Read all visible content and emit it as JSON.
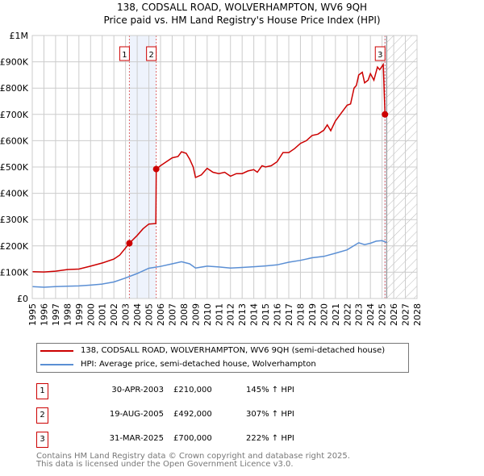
{
  "chart_data": {
    "type": "line",
    "title": "138, CODSALL ROAD, WOLVERHAMPTON, WV6 9QH",
    "subtitle": "Price paid vs. HM Land Registry's House Price Index (HPI)",
    "xlim": [
      1995,
      2028
    ],
    "ylim": [
      0,
      1000000
    ],
    "grid": true,
    "x_ticks": [
      "1995",
      "1996",
      "1997",
      "1998",
      "1999",
      "2000",
      "2001",
      "2002",
      "2003",
      "2004",
      "2005",
      "2006",
      "2007",
      "2008",
      "2009",
      "2010",
      "2011",
      "2012",
      "2013",
      "2014",
      "2015",
      "2016",
      "2017",
      "2018",
      "2019",
      "2020",
      "2021",
      "2022",
      "2023",
      "2024",
      "2025",
      "2026",
      "2027",
      "2028"
    ],
    "y_ticks": [
      {
        "v": 0,
        "label": "£0"
      },
      {
        "v": 100000,
        "label": "£100K"
      },
      {
        "v": 200000,
        "label": "£200K"
      },
      {
        "v": 300000,
        "label": "£300K"
      },
      {
        "v": 400000,
        "label": "£400K"
      },
      {
        "v": 500000,
        "label": "£500K"
      },
      {
        "v": 600000,
        "label": "£600K"
      },
      {
        "v": 700000,
        "label": "£700K"
      },
      {
        "v": 800000,
        "label": "£800K"
      },
      {
        "v": 900000,
        "label": "£900K"
      },
      {
        "v": 1000000,
        "label": "£1M"
      }
    ],
    "forecast_start": 2025.4,
    "series": [
      {
        "name": "138, CODSALL ROAD, WOLVERHAMPTON, WV6 9QH (semi-detached house)",
        "color": "#cc0000",
        "x": [
          1995,
          1996,
          1997,
          1998,
          1999,
          2000,
          2001,
          2002,
          2002.5,
          2003.33,
          2004,
          2004.5,
          2005,
          2005.6,
          2005.63,
          2006,
          2006.5,
          2007,
          2007.5,
          2007.8,
          2008.2,
          2008.5,
          2008.8,
          2009,
          2009.5,
          2010,
          2010.5,
          2011,
          2011.5,
          2012,
          2012.5,
          2013,
          2013.5,
          2014,
          2014.3,
          2014.7,
          2015,
          2015.5,
          2016,
          2016.5,
          2017,
          2017.5,
          2018,
          2018.5,
          2019,
          2019.5,
          2020,
          2020.3,
          2020.6,
          2021,
          2021.5,
          2022,
          2022.3,
          2022.6,
          2022.8,
          2023,
          2023.3,
          2023.5,
          2023.8,
          2024,
          2024.3,
          2024.6,
          2024.8,
          2025.1,
          2025.25,
          2025.35
        ],
        "y": [
          102000,
          101000,
          104000,
          110000,
          112000,
          123000,
          135000,
          150000,
          165000,
          210000,
          240000,
          265000,
          283000,
          285000,
          492000,
          505000,
          520000,
          535000,
          540000,
          558000,
          552000,
          530000,
          500000,
          460000,
          470000,
          495000,
          480000,
          475000,
          480000,
          465000,
          475000,
          475000,
          485000,
          490000,
          480000,
          505000,
          500000,
          505000,
          520000,
          555000,
          555000,
          570000,
          590000,
          600000,
          620000,
          625000,
          640000,
          660000,
          638000,
          675000,
          705000,
          735000,
          740000,
          800000,
          810000,
          850000,
          860000,
          820000,
          830000,
          855000,
          830000,
          880000,
          870000,
          890000,
          700000,
          690000
        ]
      },
      {
        "name": "HPI: Average price, semi-detached house, Wolverhampton",
        "color": "#5b8fd4",
        "x": [
          1995,
          1996,
          1997,
          1998,
          1999,
          2000,
          2001,
          2002,
          2003,
          2004,
          2005,
          2006,
          2007,
          2007.8,
          2008.5,
          2009,
          2010,
          2011,
          2012,
          2013,
          2014,
          2015,
          2016,
          2017,
          2018,
          2019,
          2020,
          2021,
          2022,
          2023,
          2023.5,
          2024,
          2024.5,
          2025,
          2025.4
        ],
        "y": [
          45000,
          43000,
          45000,
          47000,
          48000,
          51000,
          55000,
          63000,
          78000,
          95000,
          115000,
          122000,
          132000,
          140000,
          132000,
          116000,
          123000,
          120000,
          116000,
          118000,
          121000,
          124000,
          128000,
          138000,
          145000,
          155000,
          160000,
          172000,
          185000,
          212000,
          205000,
          210000,
          218000,
          220000,
          213000
        ]
      }
    ],
    "sales": [
      {
        "n": "1",
        "x": 2003.33,
        "price": 210000,
        "date": "30-APR-2003",
        "price_label": "£210,000",
        "hpi": "145% ↑ HPI"
      },
      {
        "n": "2",
        "x": 2005.63,
        "price": 492000,
        "date": "19-AUG-2005",
        "price_label": "£492,000",
        "hpi": "307% ↑ HPI"
      },
      {
        "n": "3",
        "x": 2025.25,
        "price": 700000,
        "date": "31-MAR-2025",
        "price_label": "£700,000",
        "hpi": "222% ↑ HPI"
      }
    ]
  },
  "footer": {
    "line1": "Contains HM Land Registry data © Crown copyright and database right 2025.",
    "line2": "This data is licensed under the Open Government Licence v3.0."
  }
}
